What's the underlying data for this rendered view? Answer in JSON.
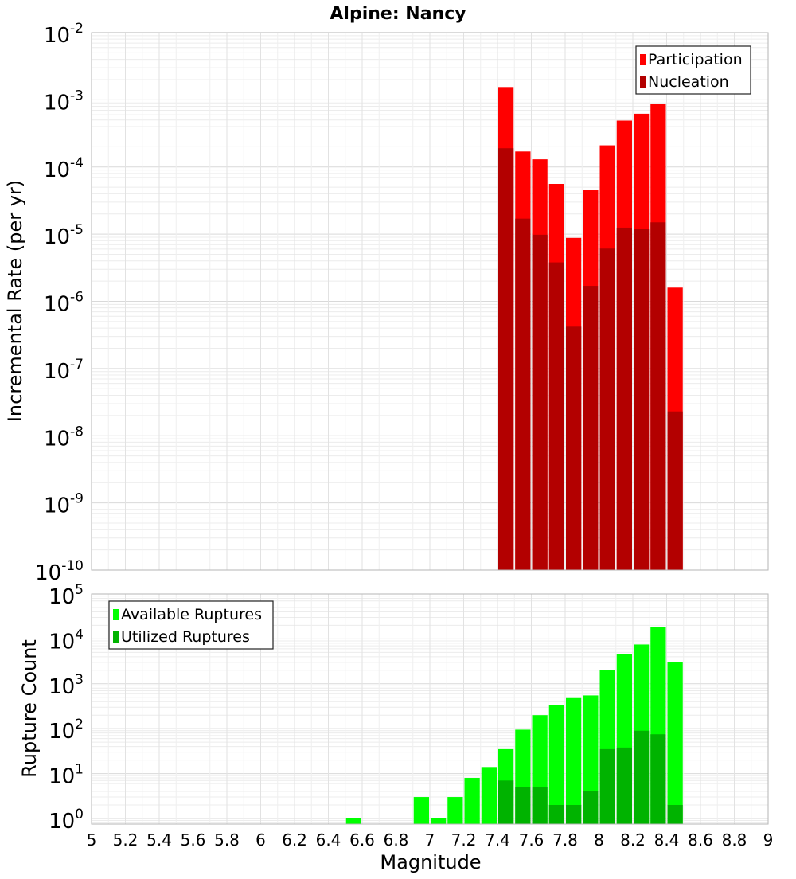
{
  "chart_data": [
    {
      "type": "bar",
      "title": "Alpine: Nancy",
      "xlabel": "Magnitude",
      "ylabel": "Incremental Rate (per yr)",
      "yscale": "log",
      "xlim": [
        5,
        9
      ],
      "ylim": [
        1e-10,
        0.01
      ],
      "grid": true,
      "legend_position": "top-right",
      "y_ticks": [
        {
          "base": "10",
          "exp": "-10",
          "value": 1e-10
        },
        {
          "base": "10",
          "exp": "-9",
          "value": 1e-09
        },
        {
          "base": "10",
          "exp": "-8",
          "value": 1e-08
        },
        {
          "base": "10",
          "exp": "-7",
          "value": 1e-07
        },
        {
          "base": "10",
          "exp": "-6",
          "value": 1e-06
        },
        {
          "base": "10",
          "exp": "-5",
          "value": 1e-05
        },
        {
          "base": "10",
          "exp": "-4",
          "value": 0.0001
        },
        {
          "base": "10",
          "exp": "-3",
          "value": 0.001
        },
        {
          "base": "10",
          "exp": "-2",
          "value": 0.01
        }
      ],
      "bin_width": 0.1,
      "x": [
        7.45,
        7.55,
        7.65,
        7.75,
        7.85,
        7.95,
        8.05,
        8.15,
        8.25,
        8.35,
        8.45
      ],
      "series": [
        {
          "name": "Participation",
          "color": "#ff0000",
          "values": [
            0.00155,
            0.00017,
            0.00013,
            5.6e-05,
            8.8e-06,
            4.5e-05,
            0.00021,
            0.00049,
            0.00062,
            0.00088,
            1.6e-06
          ]
        },
        {
          "name": "Nucleation",
          "color": "#b30000",
          "values": [
            0.00019,
            1.7e-05,
            9.8e-06,
            3.8e-06,
            4.2e-07,
            1.7e-06,
            6.1e-06,
            1.25e-05,
            1.2e-05,
            1.5e-05,
            2.3e-08
          ]
        }
      ]
    },
    {
      "type": "bar",
      "xlabel": "Magnitude",
      "ylabel": "Rupture Count",
      "yscale": "log",
      "xlim": [
        5,
        9
      ],
      "ylim": [
        0.75,
        100000.0
      ],
      "grid": true,
      "legend_position": "top-left",
      "x_ticks": [
        "5",
        "5.2",
        "5.4",
        "5.6",
        "5.8",
        "6",
        "6.2",
        "6.4",
        "6.6",
        "6.8",
        "7",
        "7.2",
        "7.4",
        "7.6",
        "7.8",
        "8",
        "8.2",
        "8.4",
        "8.6",
        "8.8",
        "9"
      ],
      "y_ticks": [
        {
          "base": "10",
          "exp": "0",
          "value": 1
        },
        {
          "base": "10",
          "exp": "1",
          "value": 10
        },
        {
          "base": "10",
          "exp": "2",
          "value": 100
        },
        {
          "base": "10",
          "exp": "3",
          "value": 1000
        },
        {
          "base": "10",
          "exp": "4",
          "value": 10000
        },
        {
          "base": "10",
          "exp": "5",
          "value": 100000
        }
      ],
      "bin_width": 0.1,
      "x": [
        6.55,
        6.95,
        7.05,
        7.15,
        7.25,
        7.35,
        7.45,
        7.55,
        7.65,
        7.75,
        7.85,
        7.95,
        8.05,
        8.15,
        8.25,
        8.35,
        8.45
      ],
      "series": [
        {
          "name": "Available Ruptures",
          "color": "#00ff00",
          "values": [
            1,
            3,
            1,
            3,
            8,
            14,
            35,
            95,
            200,
            330,
            480,
            550,
            2000,
            4500,
            7500,
            18000,
            3000
          ]
        },
        {
          "name": "Utilized Ruptures",
          "color": "#00b300",
          "values": [
            null,
            null,
            null,
            null,
            null,
            null,
            7,
            5,
            5,
            2,
            2,
            4,
            35,
            38,
            90,
            75,
            2
          ]
        }
      ]
    }
  ]
}
